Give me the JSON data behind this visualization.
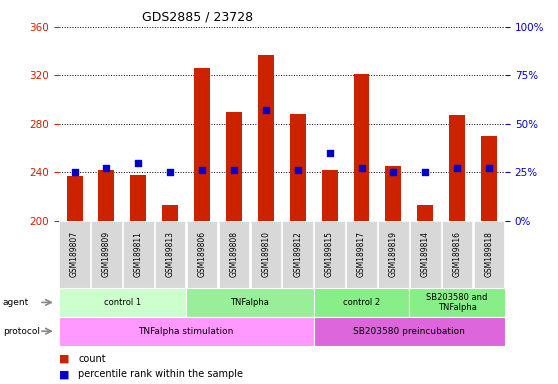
{
  "title": "GDS2885 / 23728",
  "samples": [
    "GSM189807",
    "GSM189809",
    "GSM189811",
    "GSM189813",
    "GSM189806",
    "GSM189808",
    "GSM189810",
    "GSM189812",
    "GSM189815",
    "GSM189817",
    "GSM189819",
    "GSM189814",
    "GSM189816",
    "GSM189818"
  ],
  "counts": [
    237,
    242,
    238,
    213,
    326,
    290,
    337,
    288,
    242,
    321,
    245,
    213,
    287,
    270
  ],
  "percentiles": [
    25,
    27,
    30,
    25,
    26,
    26,
    57,
    26,
    35,
    27,
    25,
    25,
    27,
    27
  ],
  "ymin": 200,
  "ymax": 360,
  "yticks_left": [
    200,
    240,
    280,
    320,
    360
  ],
  "yticks_right": [
    0,
    25,
    50,
    75,
    100
  ],
  "bar_color": "#cc2200",
  "dot_color": "#0000cc",
  "agent_groups": [
    {
      "label": "control 1",
      "start": 0,
      "end": 4,
      "color": "#ccffcc"
    },
    {
      "label": "TNFalpha",
      "start": 4,
      "end": 8,
      "color": "#99ee99"
    },
    {
      "label": "control 2",
      "start": 8,
      "end": 11,
      "color": "#88ee88"
    },
    {
      "label": "SB203580 and\nTNFalpha",
      "start": 11,
      "end": 14,
      "color": "#88ee88"
    }
  ],
  "protocol_groups": [
    {
      "label": "TNFalpha stimulation",
      "start": 0,
      "end": 8,
      "color": "#ff99ff"
    },
    {
      "label": "SB203580 preincubation",
      "start": 8,
      "end": 14,
      "color": "#dd66dd"
    }
  ],
  "legend_count_label": "count",
  "legend_pct_label": "percentile rank within the sample"
}
